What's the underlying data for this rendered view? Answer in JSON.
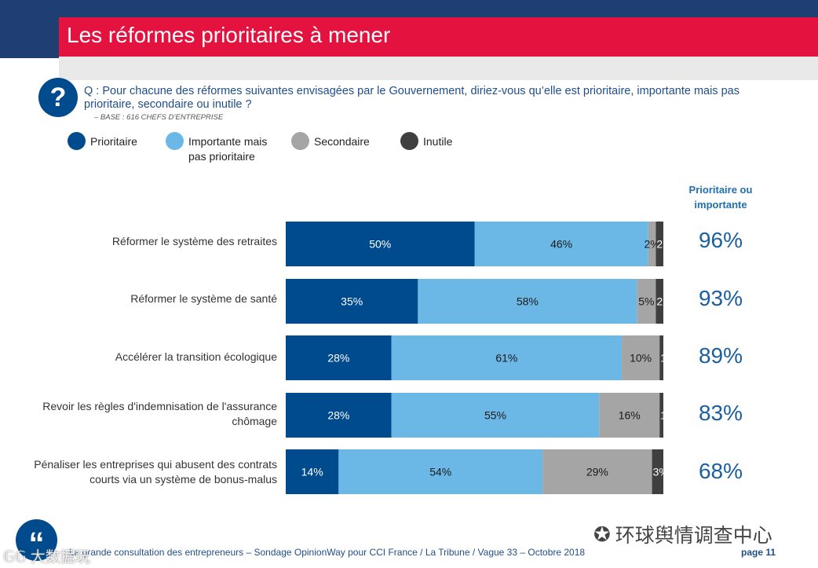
{
  "header": {
    "title": "Les réformes prioritaires à mener"
  },
  "question": {
    "icon_glyph": "?",
    "text": "Q : Pour chacune des réformes suivantes envisagées par le Gouvernement, diriez-vous qu’elle est prioritaire, importante mais pas prioritaire, secondaire ou inutile ?",
    "base": "– BASE : 616 CHEFS D’ENTREPRISE"
  },
  "legend": [
    {
      "label": "Prioritaire",
      "color": "#004b8d"
    },
    {
      "label": "Importante mais pas prioritaire",
      "color": "#6bb8e6"
    },
    {
      "label": "Secondaire",
      "color": "#a5a5a5"
    },
    {
      "label": "Inutile",
      "color": "#3f3f3f"
    }
  ],
  "column_header": "Prioritaire ou importante",
  "chart_data": {
    "type": "bar",
    "orientation": "horizontal",
    "stacked": true,
    "categories": [
      "Réformer le système des retraites",
      "Réformer le système de santé",
      "Accélérer la transition écologique",
      "Revoir les règles d'indemnisation de l'assurance chômage",
      "Pénaliser les entreprises qui abusent des contrats courts via un système de bonus-malus"
    ],
    "series": [
      {
        "name": "Prioritaire",
        "color": "#004b8d",
        "text_color": "#ffffff",
        "values": [
          50,
          35,
          28,
          28,
          14
        ],
        "labels": [
          "50%",
          "35%",
          "28%",
          "28%",
          "14%"
        ]
      },
      {
        "name": "Importante mais pas prioritaire",
        "color": "#6bb8e6",
        "text_color": "#1a1a1a",
        "values": [
          46,
          58,
          61,
          55,
          54
        ],
        "labels": [
          "46%",
          "58%",
          "61%",
          "55%",
          "54%"
        ]
      },
      {
        "name": "Secondaire",
        "color": "#a5a5a5",
        "text_color": "#1a1a1a",
        "values": [
          2,
          5,
          10,
          16,
          29
        ],
        "labels": [
          "2%",
          "5%",
          "10%",
          "16%",
          "29%"
        ]
      },
      {
        "name": "Inutile",
        "color": "#3f3f3f",
        "text_color": "#ffffff",
        "values": [
          2,
          2,
          1,
          1,
          3
        ],
        "labels": [
          "2",
          "2",
          "1",
          "1",
          "3%"
        ]
      }
    ],
    "totals": {
      "name": "Prioritaire ou importante",
      "values": [
        96,
        93,
        89,
        83,
        68
      ],
      "labels": [
        "96%",
        "93%",
        "89%",
        "83%",
        "68%"
      ]
    }
  },
  "footer": {
    "quote_glyph": "“",
    "source": "La grande consultation des entrepreneurs – Sondage OpinionWay pour CCI France / La Tribune / Vague 33 – Octobre 2018",
    "page": "page 11"
  },
  "watermarks": {
    "left": "𝔾𝔾 大数据玩",
    "right_icon": "wechat-icon",
    "right": "环球舆情调查中心"
  }
}
